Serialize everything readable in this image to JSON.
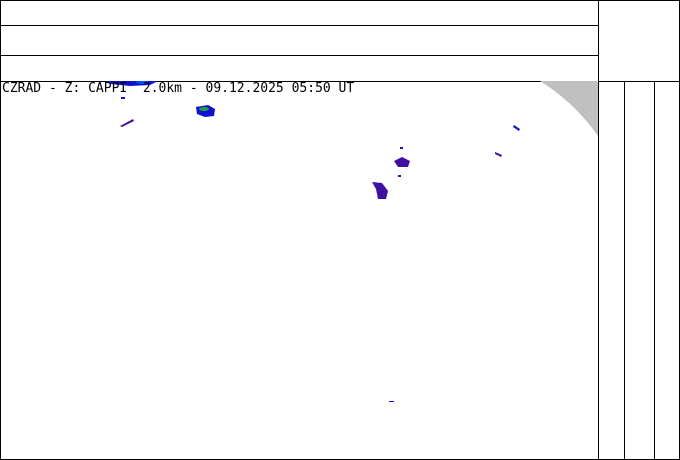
{
  "map": {
    "title": "CZRAD - Z: CAPPI  2.0km - 09.12.2025 05:50 UT",
    "colors": {
      "echo_weak": "#1010d0",
      "echo_dark": "#4010a0",
      "echo_mid": "#0050ff",
      "echo_green": "#20a040",
      "out_of_range": "#c0c0c0"
    }
  }
}
